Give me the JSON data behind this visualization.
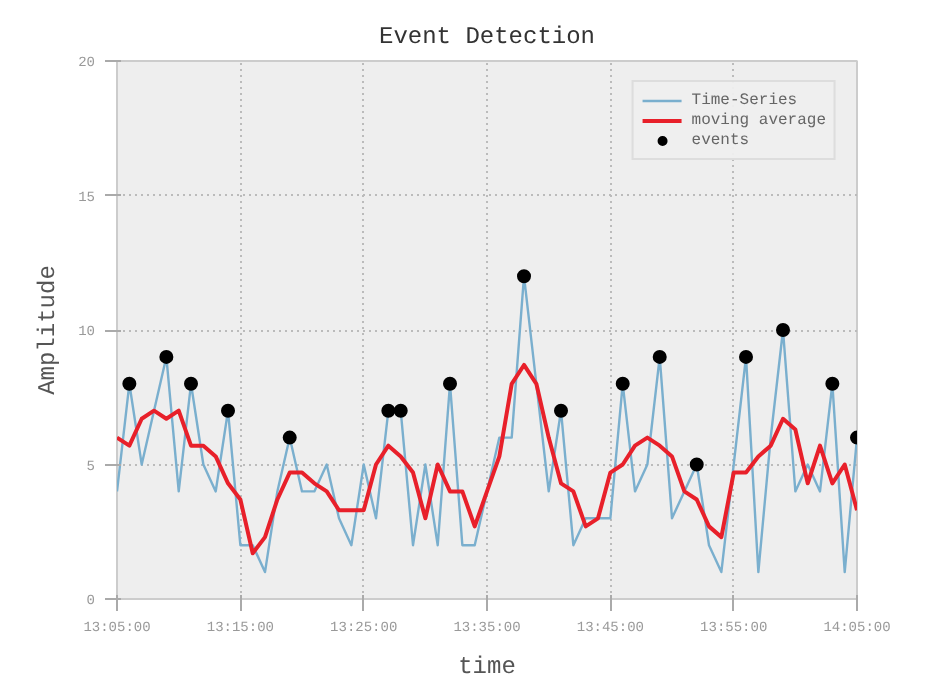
{
  "chart_data": {
    "type": "line",
    "title": "Event Detection",
    "xlabel": "time",
    "ylabel": "Amplitude",
    "xlim": [
      13.0833,
      14.0833
    ],
    "xticks": [
      {
        "value": 13.0833,
        "label": "13:05:00"
      },
      {
        "value": 13.25,
        "label": "13:15:00"
      },
      {
        "value": 13.4167,
        "label": "13:25:00"
      },
      {
        "value": 13.5833,
        "label": "13:35:00"
      },
      {
        "value": 13.75,
        "label": "13:45:00"
      },
      {
        "value": 13.9167,
        "label": "13:55:00"
      },
      {
        "value": 14.0833,
        "label": "14:05:00"
      }
    ],
    "ylim": [
      0,
      20
    ],
    "yticks": [
      0,
      5,
      10,
      15,
      20
    ],
    "grid": true,
    "legend": "top right",
    "series": [
      {
        "name": "Time-Series",
        "color": "#7aafce",
        "x": [
          13.0833,
          13.1,
          13.1167,
          13.1333,
          13.15,
          13.1667,
          13.1833,
          13.2,
          13.2167,
          13.2333,
          13.25,
          13.2667,
          13.2833,
          13.3,
          13.3167,
          13.3333,
          13.35,
          13.3667,
          13.3833,
          13.4,
          13.4167,
          13.4333,
          13.45,
          13.4667,
          13.4833,
          13.5,
          13.5167,
          13.5333,
          13.55,
          13.5667,
          13.5833,
          13.6,
          13.6167,
          13.6333,
          13.65,
          13.6667,
          13.6833,
          13.7,
          13.7167,
          13.7333,
          13.75,
          13.7667,
          13.7833,
          13.8,
          13.8167,
          13.8333,
          13.85,
          13.8667,
          13.8833,
          13.9,
          13.9167,
          13.9333,
          13.95,
          13.9667,
          13.9833,
          14.0,
          14.0167,
          14.0333,
          14.05,
          14.0667,
          14.0833
        ],
        "values": [
          4,
          8,
          5,
          7,
          9,
          4,
          8,
          5,
          4,
          7,
          2,
          2,
          1,
          4,
          6,
          4,
          4,
          5,
          3,
          2,
          5,
          3,
          7,
          7,
          2,
          5,
          2,
          8,
          2,
          2,
          4,
          6,
          6,
          12,
          8,
          4,
          7,
          2,
          3,
          3,
          3,
          8,
          4,
          5,
          9,
          3,
          4,
          5,
          2,
          1,
          5,
          9,
          1,
          6,
          10,
          4,
          5,
          4,
          8,
          1,
          6
        ]
      },
      {
        "name": "moving average",
        "color": "#e8202a",
        "x": [
          13.0833,
          13.1,
          13.1167,
          13.1333,
          13.15,
          13.1667,
          13.1833,
          13.2,
          13.2167,
          13.2333,
          13.25,
          13.2667,
          13.2833,
          13.3,
          13.3167,
          13.3333,
          13.35,
          13.3667,
          13.3833,
          13.4,
          13.4167,
          13.4333,
          13.45,
          13.4667,
          13.4833,
          13.5,
          13.5167,
          13.5333,
          13.55,
          13.5667,
          13.5833,
          13.6,
          13.6167,
          13.6333,
          13.65,
          13.6667,
          13.6833,
          13.7,
          13.7167,
          13.7333,
          13.75,
          13.7667,
          13.7833,
          13.8,
          13.8167,
          13.8333,
          13.85,
          13.8667,
          13.8833,
          13.9,
          13.9167,
          13.9333,
          13.95,
          13.9667,
          13.9833,
          14.0,
          14.0167,
          14.0333,
          14.05,
          14.0667,
          14.0833
        ],
        "values": [
          6.0,
          5.7,
          6.7,
          7.0,
          6.7,
          7.0,
          5.7,
          5.7,
          5.3,
          4.3,
          3.7,
          1.7,
          2.3,
          3.7,
          4.7,
          4.7,
          4.3,
          4.0,
          3.3,
          3.3,
          3.3,
          5.0,
          5.7,
          5.3,
          4.7,
          3.0,
          5.0,
          4.0,
          4.0,
          2.7,
          4.0,
          5.3,
          8.0,
          8.7,
          8.0,
          6.0,
          4.3,
          4.0,
          2.7,
          3.0,
          4.7,
          5.0,
          5.7,
          6.0,
          5.7,
          5.3,
          4.0,
          3.7,
          2.7,
          2.3,
          4.7,
          4.7,
          5.3,
          5.7,
          6.7,
          6.3,
          4.3,
          5.7,
          4.3,
          5.0,
          3.3
        ]
      },
      {
        "name": "events",
        "type": "scatter",
        "color": "#000000",
        "marker": "circle",
        "x": [
          13.1,
          13.15,
          13.1833,
          13.2333,
          13.3167,
          13.45,
          13.4667,
          13.5333,
          13.6333,
          13.6833,
          13.7667,
          13.8167,
          13.8667,
          13.9333,
          13.9833,
          14.05,
          14.0833
        ],
        "values": [
          8,
          9,
          8,
          7,
          6,
          7,
          7,
          8,
          12,
          7,
          8,
          9,
          5,
          9,
          10,
          8,
          6
        ]
      }
    ]
  }
}
